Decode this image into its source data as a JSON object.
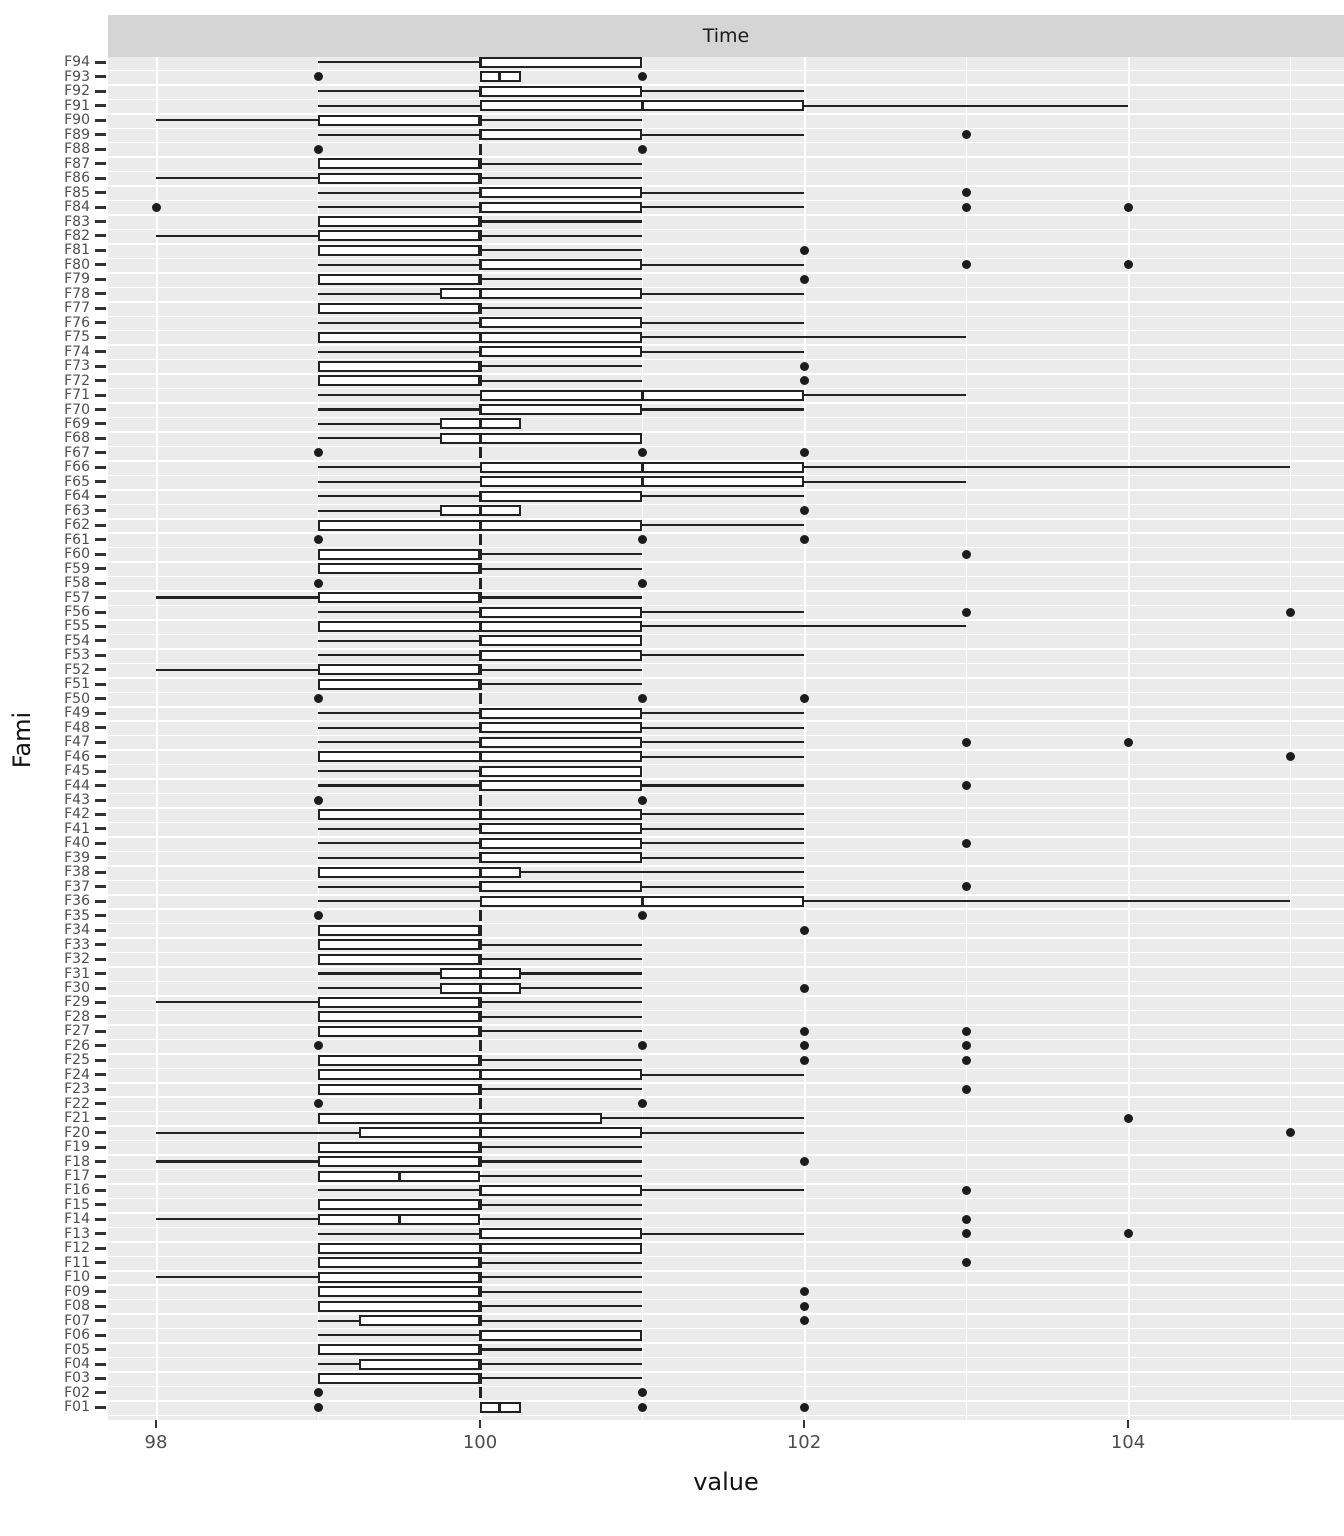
{
  "facet": {
    "title": "Time"
  },
  "axes": {
    "x_label": "value",
    "y_label": "Fami",
    "x_ticks": [
      98,
      100,
      102,
      104
    ]
  },
  "colors": {
    "panel_background": "#ebebeb",
    "strip_background": "#d5d5d5",
    "gridline": "#ffffff",
    "box_stroke": "#222222",
    "box_fill": "#ffffff",
    "axis_text": "#4d4d4d"
  },
  "chart_data": {
    "type": "boxplot",
    "orientation": "horizontal",
    "title": "Time",
    "xlabel": "value",
    "ylabel": "Fami",
    "xlim": [
      97.7,
      105.4
    ],
    "x_major_gridlines": [
      98,
      100,
      102,
      104
    ],
    "x_minor_gridlines": [
      99,
      101,
      103,
      105
    ],
    "grid": true,
    "legend": false,
    "note": "rows listed bottom-to-top as displayed; lo/hi are whisker ends, out = outlier points",
    "rows": [
      {
        "name": "F01",
        "lo": 100,
        "q1": 100,
        "md": 100.12,
        "q3": 100.25,
        "hi": 100.25,
        "out": [
          99,
          101,
          102
        ]
      },
      {
        "name": "F02",
        "lo": 100,
        "q1": 100,
        "md": 100,
        "q3": 100,
        "hi": 100,
        "out": [
          99,
          101
        ]
      },
      {
        "name": "F03",
        "lo": 99,
        "q1": 99,
        "md": 100,
        "q3": 100,
        "hi": 101,
        "out": []
      },
      {
        "name": "F04",
        "lo": 99,
        "q1": 99.25,
        "md": 100,
        "q3": 100,
        "hi": 101,
        "out": []
      },
      {
        "name": "F05",
        "lo": 99,
        "q1": 99,
        "md": 100,
        "q3": 100,
        "hi": 101,
        "out": []
      },
      {
        "name": "F06",
        "lo": 99,
        "q1": 100,
        "md": 100,
        "q3": 101,
        "hi": 101,
        "out": []
      },
      {
        "name": "F07",
        "lo": 99,
        "q1": 99.25,
        "md": 100,
        "q3": 100,
        "hi": 101,
        "out": [
          102
        ]
      },
      {
        "name": "F08",
        "lo": 99,
        "q1": 99,
        "md": 100,
        "q3": 100,
        "hi": 101,
        "out": [
          102
        ]
      },
      {
        "name": "F09",
        "lo": 99,
        "q1": 99,
        "md": 100,
        "q3": 100,
        "hi": 101,
        "out": [
          102
        ]
      },
      {
        "name": "F10",
        "lo": 98,
        "q1": 99,
        "md": 100,
        "q3": 100,
        "hi": 101,
        "out": []
      },
      {
        "name": "F11",
        "lo": 99,
        "q1": 99,
        "md": 100,
        "q3": 100,
        "hi": 101,
        "out": [
          103
        ]
      },
      {
        "name": "F12",
        "lo": 99,
        "q1": 99,
        "md": 100,
        "q3": 101,
        "hi": 101,
        "out": []
      },
      {
        "name": "F13",
        "lo": 99,
        "q1": 100,
        "md": 100,
        "q3": 101,
        "hi": 102,
        "out": [
          103,
          104
        ]
      },
      {
        "name": "F14",
        "lo": 98,
        "q1": 99,
        "md": 99.5,
        "q3": 100,
        "hi": 101,
        "out": [
          103
        ]
      },
      {
        "name": "F15",
        "lo": 99,
        "q1": 99,
        "md": 100,
        "q3": 100,
        "hi": 101,
        "out": []
      },
      {
        "name": "F16",
        "lo": 99,
        "q1": 100,
        "md": 100,
        "q3": 101,
        "hi": 102,
        "out": [
          103
        ]
      },
      {
        "name": "F17",
        "lo": 99,
        "q1": 99,
        "md": 99.5,
        "q3": 100,
        "hi": 101,
        "out": []
      },
      {
        "name": "F18",
        "lo": 98,
        "q1": 99,
        "md": 100,
        "q3": 100,
        "hi": 101,
        "out": [
          102
        ]
      },
      {
        "name": "F19",
        "lo": 99,
        "q1": 99,
        "md": 100,
        "q3": 100,
        "hi": 101,
        "out": []
      },
      {
        "name": "F20",
        "lo": 98,
        "q1": 99.25,
        "md": 100,
        "q3": 101,
        "hi": 102,
        "out": [
          105
        ]
      },
      {
        "name": "F21",
        "lo": 99,
        "q1": 99,
        "md": 100,
        "q3": 100.75,
        "hi": 102,
        "out": [
          104
        ]
      },
      {
        "name": "F22",
        "lo": 100,
        "q1": 100,
        "md": 100,
        "q3": 100,
        "hi": 100,
        "out": [
          99,
          101
        ]
      },
      {
        "name": "F23",
        "lo": 99,
        "q1": 99,
        "md": 100,
        "q3": 100,
        "hi": 101,
        "out": [
          103
        ]
      },
      {
        "name": "F24",
        "lo": 99,
        "q1": 99,
        "md": 100,
        "q3": 101,
        "hi": 102,
        "out": []
      },
      {
        "name": "F25",
        "lo": 99,
        "q1": 99,
        "md": 100,
        "q3": 100,
        "hi": 101,
        "out": [
          102,
          103
        ]
      },
      {
        "name": "F26",
        "lo": 100,
        "q1": 100,
        "md": 100,
        "q3": 100,
        "hi": 100,
        "out": [
          99,
          101,
          102,
          103
        ]
      },
      {
        "name": "F27",
        "lo": 99,
        "q1": 99,
        "md": 100,
        "q3": 100,
        "hi": 101,
        "out": [
          102,
          103
        ]
      },
      {
        "name": "F28",
        "lo": 99,
        "q1": 99,
        "md": 100,
        "q3": 100,
        "hi": 101,
        "out": []
      },
      {
        "name": "F29",
        "lo": 98,
        "q1": 99,
        "md": 100,
        "q3": 100,
        "hi": 101,
        "out": []
      },
      {
        "name": "F30",
        "lo": 99,
        "q1": 99.75,
        "md": 100,
        "q3": 100.25,
        "hi": 101,
        "out": [
          102
        ]
      },
      {
        "name": "F31",
        "lo": 99,
        "q1": 99.75,
        "md": 100,
        "q3": 100.25,
        "hi": 101,
        "out": []
      },
      {
        "name": "F32",
        "lo": 99,
        "q1": 99,
        "md": 100,
        "q3": 100,
        "hi": 101,
        "out": []
      },
      {
        "name": "F33",
        "lo": 99,
        "q1": 99,
        "md": 100,
        "q3": 100,
        "hi": 101,
        "out": []
      },
      {
        "name": "F34",
        "lo": 99,
        "q1": 99,
        "md": 100,
        "q3": 100,
        "hi": 100,
        "out": [
          102
        ]
      },
      {
        "name": "F35",
        "lo": 100,
        "q1": 100,
        "md": 100,
        "q3": 100,
        "hi": 100,
        "out": [
          99,
          101
        ]
      },
      {
        "name": "F36",
        "lo": 99,
        "q1": 100,
        "md": 101,
        "q3": 102,
        "hi": 105,
        "out": []
      },
      {
        "name": "F37",
        "lo": 99,
        "q1": 100,
        "md": 100,
        "q3": 101,
        "hi": 102,
        "out": [
          103
        ]
      },
      {
        "name": "F38",
        "lo": 99,
        "q1": 99,
        "md": 100,
        "q3": 100.25,
        "hi": 102,
        "out": []
      },
      {
        "name": "F39",
        "lo": 99,
        "q1": 100,
        "md": 100,
        "q3": 101,
        "hi": 102,
        "out": []
      },
      {
        "name": "F40",
        "lo": 99,
        "q1": 100,
        "md": 100,
        "q3": 101,
        "hi": 102,
        "out": [
          103
        ]
      },
      {
        "name": "F41",
        "lo": 99,
        "q1": 100,
        "md": 100,
        "q3": 101,
        "hi": 102,
        "out": []
      },
      {
        "name": "F42",
        "lo": 99,
        "q1": 99,
        "md": 100,
        "q3": 101,
        "hi": 102,
        "out": []
      },
      {
        "name": "F43",
        "lo": 100,
        "q1": 100,
        "md": 100,
        "q3": 100,
        "hi": 100,
        "out": [
          99,
          101
        ]
      },
      {
        "name": "F44",
        "lo": 99,
        "q1": 100,
        "md": 100,
        "q3": 101,
        "hi": 102,
        "out": [
          103
        ]
      },
      {
        "name": "F45",
        "lo": 99,
        "q1": 100,
        "md": 100,
        "q3": 101,
        "hi": 101,
        "out": []
      },
      {
        "name": "F46",
        "lo": 99,
        "q1": 99,
        "md": 100,
        "q3": 101,
        "hi": 102,
        "out": [
          105
        ]
      },
      {
        "name": "F47",
        "lo": 99,
        "q1": 100,
        "md": 100,
        "q3": 101,
        "hi": 102,
        "out": [
          103,
          104
        ]
      },
      {
        "name": "F48",
        "lo": 99,
        "q1": 100,
        "md": 100,
        "q3": 101,
        "hi": 102,
        "out": []
      },
      {
        "name": "F49",
        "lo": 99,
        "q1": 100,
        "md": 100,
        "q3": 101,
        "hi": 102,
        "out": []
      },
      {
        "name": "F50",
        "lo": 100,
        "q1": 100,
        "md": 100,
        "q3": 100,
        "hi": 100,
        "out": [
          99,
          101,
          102
        ]
      },
      {
        "name": "F51",
        "lo": 99,
        "q1": 99,
        "md": 100,
        "q3": 100,
        "hi": 101,
        "out": []
      },
      {
        "name": "F52",
        "lo": 98,
        "q1": 99,
        "md": 100,
        "q3": 100,
        "hi": 101,
        "out": []
      },
      {
        "name": "F53",
        "lo": 99,
        "q1": 100,
        "md": 100,
        "q3": 101,
        "hi": 102,
        "out": []
      },
      {
        "name": "F54",
        "lo": 99,
        "q1": 100,
        "md": 100,
        "q3": 101,
        "hi": 101,
        "out": []
      },
      {
        "name": "F55",
        "lo": 99,
        "q1": 99,
        "md": 100,
        "q3": 101,
        "hi": 103,
        "out": []
      },
      {
        "name": "F56",
        "lo": 99,
        "q1": 100,
        "md": 100,
        "q3": 101,
        "hi": 102,
        "out": [
          103,
          105
        ]
      },
      {
        "name": "F57",
        "lo": 98,
        "q1": 99,
        "md": 100,
        "q3": 100,
        "hi": 101,
        "out": []
      },
      {
        "name": "F58",
        "lo": 100,
        "q1": 100,
        "md": 100,
        "q3": 100,
        "hi": 100,
        "out": [
          99,
          101
        ]
      },
      {
        "name": "F59",
        "lo": 99,
        "q1": 99,
        "md": 100,
        "q3": 100,
        "hi": 101,
        "out": []
      },
      {
        "name": "F60",
        "lo": 99,
        "q1": 99,
        "md": 100,
        "q3": 100,
        "hi": 101,
        "out": [
          103
        ]
      },
      {
        "name": "F61",
        "lo": 100,
        "q1": 100,
        "md": 100,
        "q3": 100,
        "hi": 100,
        "out": [
          99,
          101,
          102
        ]
      },
      {
        "name": "F62",
        "lo": 99,
        "q1": 99,
        "md": 100,
        "q3": 101,
        "hi": 102,
        "out": []
      },
      {
        "name": "F63",
        "lo": 99,
        "q1": 99.75,
        "md": 100,
        "q3": 100.25,
        "hi": 100.25,
        "out": [
          102
        ]
      },
      {
        "name": "F64",
        "lo": 99,
        "q1": 100,
        "md": 100,
        "q3": 101,
        "hi": 102,
        "out": []
      },
      {
        "name": "F65",
        "lo": 99,
        "q1": 100,
        "md": 101,
        "q3": 102,
        "hi": 103,
        "out": []
      },
      {
        "name": "F66",
        "lo": 99,
        "q1": 100,
        "md": 101,
        "q3": 102,
        "hi": 105,
        "out": []
      },
      {
        "name": "F67",
        "lo": 100,
        "q1": 100,
        "md": 100,
        "q3": 100,
        "hi": 100,
        "out": [
          99,
          101,
          102
        ]
      },
      {
        "name": "F68",
        "lo": 99,
        "q1": 99.75,
        "md": 100,
        "q3": 101,
        "hi": 101,
        "out": []
      },
      {
        "name": "F69",
        "lo": 99,
        "q1": 99.75,
        "md": 100,
        "q3": 100.25,
        "hi": 100.25,
        "out": []
      },
      {
        "name": "F70",
        "lo": 99,
        "q1": 100,
        "md": 100,
        "q3": 101,
        "hi": 102,
        "out": []
      },
      {
        "name": "F71",
        "lo": 99,
        "q1": 100,
        "md": 101,
        "q3": 102,
        "hi": 103,
        "out": []
      },
      {
        "name": "F72",
        "lo": 99,
        "q1": 99,
        "md": 100,
        "q3": 100,
        "hi": 101,
        "out": [
          102
        ]
      },
      {
        "name": "F73",
        "lo": 99,
        "q1": 99,
        "md": 100,
        "q3": 100,
        "hi": 101,
        "out": [
          102
        ]
      },
      {
        "name": "F74",
        "lo": 99,
        "q1": 100,
        "md": 100,
        "q3": 101,
        "hi": 102,
        "out": []
      },
      {
        "name": "F75",
        "lo": 99,
        "q1": 99,
        "md": 100,
        "q3": 101,
        "hi": 103,
        "out": []
      },
      {
        "name": "F76",
        "lo": 99,
        "q1": 100,
        "md": 100,
        "q3": 101,
        "hi": 102,
        "out": []
      },
      {
        "name": "F77",
        "lo": 99,
        "q1": 99,
        "md": 100,
        "q3": 100,
        "hi": 101,
        "out": []
      },
      {
        "name": "F78",
        "lo": 99,
        "q1": 99.75,
        "md": 100,
        "q3": 101,
        "hi": 102,
        "out": []
      },
      {
        "name": "F79",
        "lo": 99,
        "q1": 99,
        "md": 100,
        "q3": 100,
        "hi": 101,
        "out": [
          102
        ]
      },
      {
        "name": "F80",
        "lo": 99,
        "q1": 100,
        "md": 100,
        "q3": 101,
        "hi": 102,
        "out": [
          103,
          104
        ]
      },
      {
        "name": "F81",
        "lo": 99,
        "q1": 99,
        "md": 100,
        "q3": 100,
        "hi": 101,
        "out": [
          102
        ]
      },
      {
        "name": "F82",
        "lo": 98,
        "q1": 99,
        "md": 100,
        "q3": 100,
        "hi": 101,
        "out": []
      },
      {
        "name": "F83",
        "lo": 99,
        "q1": 99,
        "md": 100,
        "q3": 100,
        "hi": 101,
        "out": []
      },
      {
        "name": "F84",
        "lo": 99,
        "q1": 100,
        "md": 100,
        "q3": 101,
        "hi": 102,
        "out": [
          98,
          103,
          104
        ]
      },
      {
        "name": "F85",
        "lo": 99,
        "q1": 100,
        "md": 100,
        "q3": 101,
        "hi": 102,
        "out": [
          103
        ]
      },
      {
        "name": "F86",
        "lo": 98,
        "q1": 99,
        "md": 100,
        "q3": 100,
        "hi": 101,
        "out": []
      },
      {
        "name": "F87",
        "lo": 99,
        "q1": 99,
        "md": 100,
        "q3": 100,
        "hi": 101,
        "out": []
      },
      {
        "name": "F88",
        "lo": 100,
        "q1": 100,
        "md": 100,
        "q3": 100,
        "hi": 100,
        "out": [
          99,
          101
        ]
      },
      {
        "name": "F89",
        "lo": 99,
        "q1": 100,
        "md": 100,
        "q3": 101,
        "hi": 102,
        "out": [
          103
        ]
      },
      {
        "name": "F90",
        "lo": 98,
        "q1": 99,
        "md": 100,
        "q3": 100,
        "hi": 101,
        "out": []
      },
      {
        "name": "F91",
        "lo": 99,
        "q1": 100,
        "md": 101,
        "q3": 102,
        "hi": 104,
        "out": []
      },
      {
        "name": "F92",
        "lo": 99,
        "q1": 100,
        "md": 100,
        "q3": 101,
        "hi": 102,
        "out": []
      },
      {
        "name": "F93",
        "lo": 100,
        "q1": 100,
        "md": 100.12,
        "q3": 100.25,
        "hi": 100.25,
        "out": [
          99,
          101
        ]
      },
      {
        "name": "F94",
        "lo": 99,
        "q1": 100,
        "md": 100,
        "q3": 101,
        "hi": 101,
        "out": []
      }
    ]
  }
}
